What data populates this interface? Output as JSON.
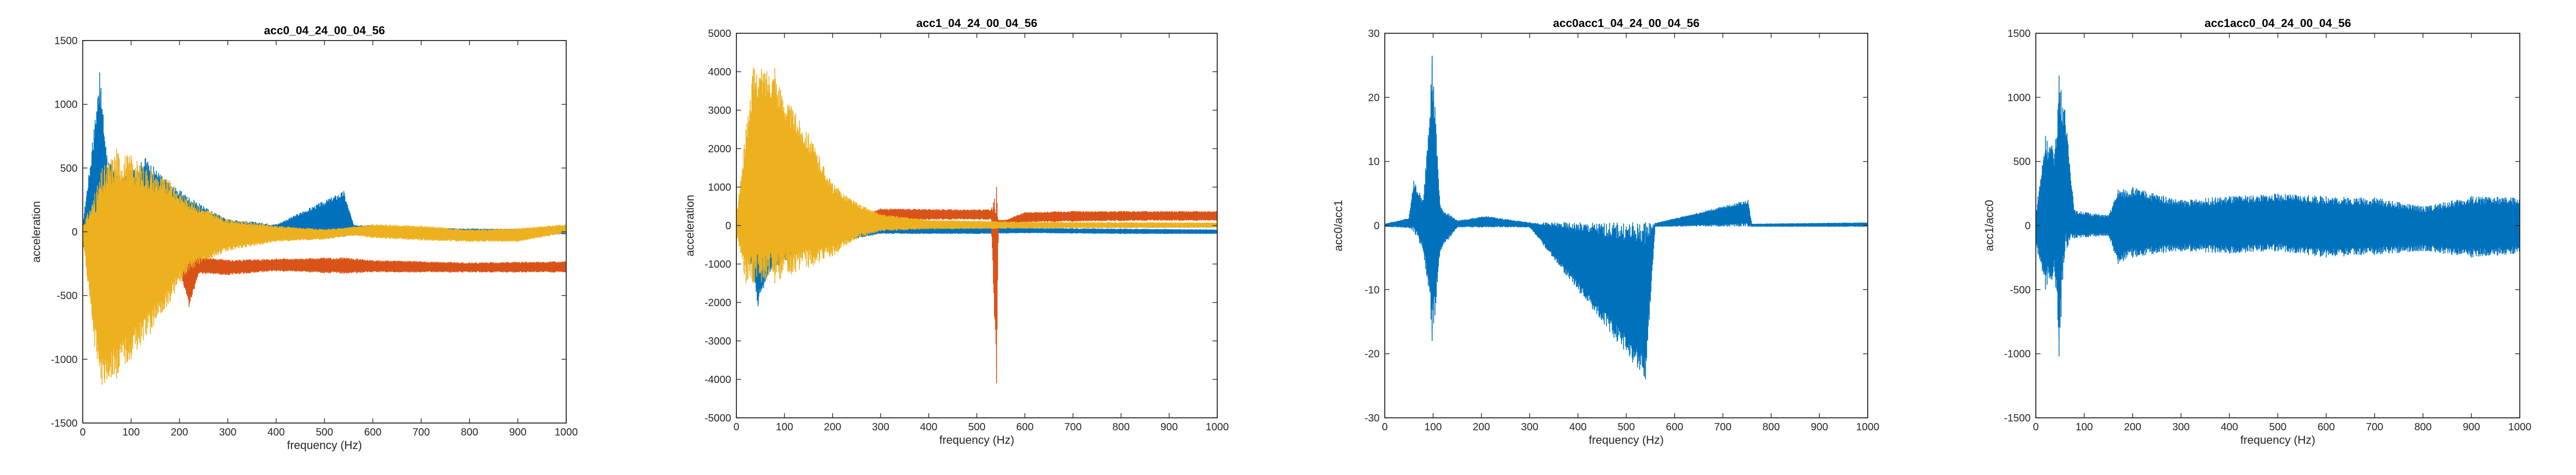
{
  "figure": {
    "background": "#ffffff"
  },
  "colors": {
    "blue": "#0072BD",
    "orange": "#D95319",
    "yellow": "#EDB120",
    "axis": "#262626"
  },
  "chart_data": [
    {
      "type": "line",
      "title": "acc0_04_24_00_04_56",
      "xlabel": "frequency (Hz)",
      "ylabel": "acceleration",
      "xlim": [
        0,
        1000
      ],
      "ylim": [
        -1500,
        1500
      ],
      "xticks": [
        0,
        100,
        200,
        300,
        400,
        500,
        600,
        700,
        800,
        900,
        1000
      ],
      "yticks": [
        -1500,
        -1000,
        -500,
        0,
        500,
        1000,
        1500
      ],
      "grid": false,
      "series": [
        {
          "color": "#0072BD",
          "envelope": [
            {
              "x": 0,
              "lo": -60,
              "hi": 60
            },
            {
              "x": 20,
              "lo": -250,
              "hi": 700
            },
            {
              "x": 35,
              "lo": -300,
              "hi": 1250
            },
            {
              "x": 50,
              "lo": -250,
              "hi": 600
            },
            {
              "x": 80,
              "lo": -180,
              "hi": 420
            },
            {
              "x": 130,
              "lo": -120,
              "hi": 580
            },
            {
              "x": 180,
              "lo": -90,
              "hi": 380
            },
            {
              "x": 250,
              "lo": -60,
              "hi": 200
            },
            {
              "x": 300,
              "lo": -40,
              "hi": 100
            },
            {
              "x": 400,
              "lo": -40,
              "hi": 60
            },
            {
              "x": 540,
              "lo": -40,
              "hi": 320
            },
            {
              "x": 560,
              "lo": -30,
              "hi": 60
            },
            {
              "x": 700,
              "lo": -30,
              "hi": 30
            },
            {
              "x": 1000,
              "lo": -20,
              "hi": 20
            }
          ]
        },
        {
          "color": "#D95319",
          "envelope": [
            {
              "x": 0,
              "lo": -120,
              "hi": 20
            },
            {
              "x": 30,
              "lo": -200,
              "hi": 40
            },
            {
              "x": 100,
              "lo": -300,
              "hi": -50
            },
            {
              "x": 200,
              "lo": -290,
              "hi": -170
            },
            {
              "x": 220,
              "lo": -590,
              "hi": -180
            },
            {
              "x": 240,
              "lo": -330,
              "hi": -190
            },
            {
              "x": 300,
              "lo": -340,
              "hi": -220
            },
            {
              "x": 400,
              "lo": -310,
              "hi": -210
            },
            {
              "x": 540,
              "lo": -330,
              "hi": -200
            },
            {
              "x": 600,
              "lo": -320,
              "hi": -220
            },
            {
              "x": 800,
              "lo": -320,
              "hi": -240
            },
            {
              "x": 1000,
              "lo": -320,
              "hi": -230
            }
          ]
        },
        {
          "color": "#EDB120",
          "envelope": [
            {
              "x": 0,
              "lo": -50,
              "hi": 50
            },
            {
              "x": 25,
              "lo": -900,
              "hi": 300
            },
            {
              "x": 40,
              "lo": -1200,
              "hi": 500
            },
            {
              "x": 70,
              "lo": -1150,
              "hi": 650
            },
            {
              "x": 100,
              "lo": -1000,
              "hi": 600
            },
            {
              "x": 140,
              "lo": -800,
              "hi": 500
            },
            {
              "x": 180,
              "lo": -550,
              "hi": 400
            },
            {
              "x": 220,
              "lo": -300,
              "hi": 250
            },
            {
              "x": 300,
              "lo": -150,
              "hi": 100
            },
            {
              "x": 400,
              "lo": -80,
              "hi": 50
            },
            {
              "x": 500,
              "lo": -60,
              "hi": 20
            },
            {
              "x": 560,
              "lo": -30,
              "hi": 40
            },
            {
              "x": 600,
              "lo": -50,
              "hi": 60
            },
            {
              "x": 700,
              "lo": -70,
              "hi": 50
            },
            {
              "x": 800,
              "lo": -80,
              "hi": 20
            },
            {
              "x": 900,
              "lo": -80,
              "hi": 30
            },
            {
              "x": 1000,
              "lo": -10,
              "hi": 60
            }
          ]
        }
      ]
    },
    {
      "type": "line",
      "title": "acc1_04_24_00_04_56",
      "xlabel": "frequency (Hz)",
      "ylabel": "acceleration",
      "xlim": [
        0,
        1000
      ],
      "ylim": [
        -5000,
        5000
      ],
      "xticks": [
        0,
        100,
        200,
        300,
        400,
        500,
        600,
        700,
        800,
        900,
        1000
      ],
      "yticks": [
        -5000,
        -4000,
        -3000,
        -2000,
        -1000,
        0,
        1000,
        2000,
        3000,
        4000,
        5000
      ],
      "grid": false,
      "series": [
        {
          "color": "#0072BD",
          "envelope": [
            {
              "x": 0,
              "lo": -150,
              "hi": 150
            },
            {
              "x": 30,
              "lo": -1000,
              "hi": 400
            },
            {
              "x": 45,
              "lo": -2100,
              "hi": 500
            },
            {
              "x": 70,
              "lo": -1200,
              "hi": 300
            },
            {
              "x": 150,
              "lo": -600,
              "hi": 150
            },
            {
              "x": 300,
              "lo": -220,
              "hi": 0
            },
            {
              "x": 500,
              "lo": -220,
              "hi": -50
            },
            {
              "x": 600,
              "lo": -200,
              "hi": -60
            },
            {
              "x": 800,
              "lo": -220,
              "hi": -80
            },
            {
              "x": 1000,
              "lo": -220,
              "hi": -100
            }
          ]
        },
        {
          "color": "#D95319",
          "envelope": [
            {
              "x": 0,
              "lo": -100,
              "hi": 100
            },
            {
              "x": 250,
              "lo": 0,
              "hi": 250
            },
            {
              "x": 300,
              "lo": 120,
              "hi": 450
            },
            {
              "x": 400,
              "lo": 150,
              "hi": 430
            },
            {
              "x": 530,
              "lo": 150,
              "hi": 420
            },
            {
              "x": 541,
              "lo": -4100,
              "hi": 1000
            },
            {
              "x": 545,
              "lo": 0,
              "hi": 150
            },
            {
              "x": 560,
              "lo": 0,
              "hi": 150
            },
            {
              "x": 600,
              "lo": 80,
              "hi": 350
            },
            {
              "x": 700,
              "lo": 100,
              "hi": 380
            },
            {
              "x": 850,
              "lo": 120,
              "hi": 380
            },
            {
              "x": 1000,
              "lo": 120,
              "hi": 380
            }
          ]
        },
        {
          "color": "#EDB120",
          "envelope": [
            {
              "x": 0,
              "lo": -200,
              "hi": 200
            },
            {
              "x": 20,
              "lo": -1500,
              "hi": 2500
            },
            {
              "x": 35,
              "lo": -1500,
              "hi": 4100
            },
            {
              "x": 80,
              "lo": -1500,
              "hi": 4100
            },
            {
              "x": 90,
              "lo": -1400,
              "hi": 3600
            },
            {
              "x": 150,
              "lo": -1100,
              "hi": 2400
            },
            {
              "x": 200,
              "lo": -800,
              "hi": 1100
            },
            {
              "x": 250,
              "lo": -350,
              "hi": 600
            },
            {
              "x": 300,
              "lo": -150,
              "hi": 300
            },
            {
              "x": 400,
              "lo": -100,
              "hi": 150
            },
            {
              "x": 600,
              "lo": -80,
              "hi": 100
            },
            {
              "x": 1000,
              "lo": -60,
              "hi": 80
            }
          ]
        }
      ]
    },
    {
      "type": "line",
      "title": "acc0acc1_04_24_00_04_56",
      "xlabel": "frequency (Hz)",
      "ylabel": "acc0/acc1",
      "xlim": [
        0,
        1000
      ],
      "ylim": [
        -30,
        30
      ],
      "xticks": [
        0,
        100,
        200,
        300,
        400,
        500,
        600,
        700,
        800,
        900,
        1000
      ],
      "yticks": [
        -30,
        -20,
        -10,
        0,
        10,
        20,
        30
      ],
      "grid": false,
      "series": [
        {
          "color": "#0072BD",
          "envelope": [
            {
              "x": 0,
              "lo": -0.2,
              "hi": 0.3
            },
            {
              "x": 50,
              "lo": -0.4,
              "hi": 1.2
            },
            {
              "x": 60,
              "lo": -1,
              "hi": 7
            },
            {
              "x": 80,
              "lo": -4,
              "hi": 4
            },
            {
              "x": 98,
              "lo": -18,
              "hi": 26.5
            },
            {
              "x": 104,
              "lo": -14,
              "hi": 18.5
            },
            {
              "x": 115,
              "lo": -4,
              "hi": 3
            },
            {
              "x": 150,
              "lo": -0.3,
              "hi": 0.8
            },
            {
              "x": 210,
              "lo": -0.3,
              "hi": 1.5
            },
            {
              "x": 300,
              "lo": -0.3,
              "hi": 0.5
            },
            {
              "x": 540,
              "lo": -24,
              "hi": 0.5
            },
            {
              "x": 560,
              "lo": -0.2,
              "hi": 0.4
            },
            {
              "x": 752,
              "lo": -0.2,
              "hi": 4
            },
            {
              "x": 760,
              "lo": -0.2,
              "hi": 0.3
            },
            {
              "x": 1000,
              "lo": -0.2,
              "hi": 0.5
            }
          ]
        }
      ]
    },
    {
      "type": "line",
      "title": "acc1acc0_04_24_00_04_56",
      "xlabel": "frequency (Hz)",
      "ylabel": "acc1/acc0",
      "xlim": [
        0,
        1000
      ],
      "ylim": [
        -1500,
        1500
      ],
      "xticks": [
        0,
        100,
        200,
        300,
        400,
        500,
        600,
        700,
        800,
        900,
        1000
      ],
      "yticks": [
        -1500,
        -1000,
        -500,
        0,
        500,
        1000,
        1500
      ],
      "grid": false,
      "series": [
        {
          "color": "#0072BD",
          "envelope": [
            {
              "x": 0,
              "lo": -150,
              "hi": 100
            },
            {
              "x": 20,
              "lo": -500,
              "hi": 700
            },
            {
              "x": 40,
              "lo": -400,
              "hi": 600
            },
            {
              "x": 48,
              "lo": -1020,
              "hi": 1170
            },
            {
              "x": 60,
              "lo": -200,
              "hi": 900
            },
            {
              "x": 80,
              "lo": -100,
              "hi": 120
            },
            {
              "x": 150,
              "lo": -80,
              "hi": 80
            },
            {
              "x": 170,
              "lo": -300,
              "hi": 280
            },
            {
              "x": 200,
              "lo": -250,
              "hi": 300
            },
            {
              "x": 300,
              "lo": -200,
              "hi": 200
            },
            {
              "x": 400,
              "lo": -220,
              "hi": 230
            },
            {
              "x": 500,
              "lo": -200,
              "hi": 250
            },
            {
              "x": 600,
              "lo": -250,
              "hi": 230
            },
            {
              "x": 700,
              "lo": -230,
              "hi": 220
            },
            {
              "x": 800,
              "lo": -200,
              "hi": 150
            },
            {
              "x": 900,
              "lo": -250,
              "hi": 230
            },
            {
              "x": 1000,
              "lo": -220,
              "hi": 220
            }
          ]
        }
      ]
    }
  ]
}
